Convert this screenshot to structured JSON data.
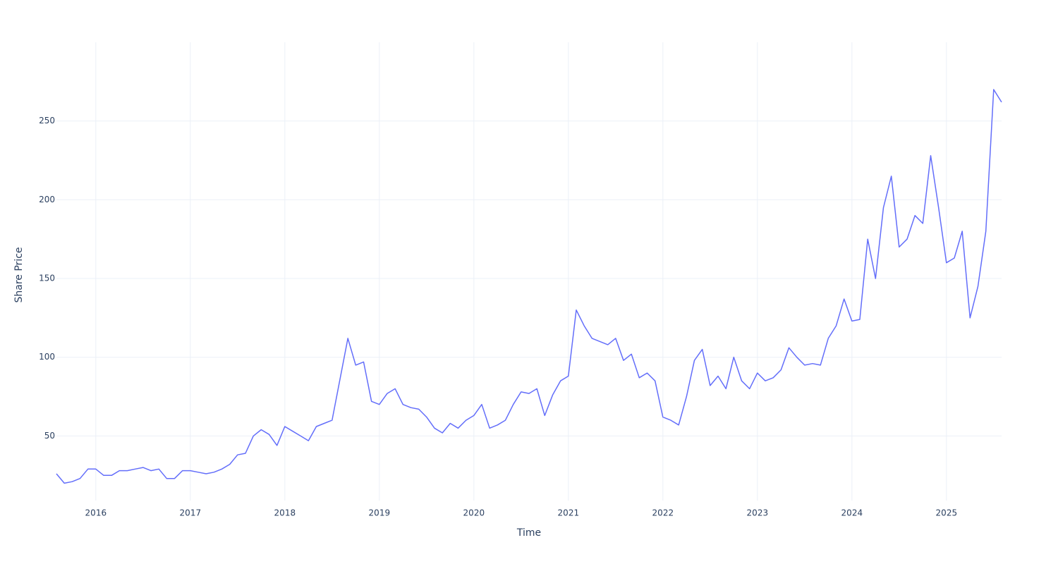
{
  "chart_data": {
    "type": "line",
    "xlabel": "Time",
    "ylabel": "Share Price",
    "x": [
      "2015-08",
      "2015-09",
      "2015-10",
      "2015-11",
      "2015-12",
      "2016-01",
      "2016-02",
      "2016-03",
      "2016-04",
      "2016-05",
      "2016-06",
      "2016-07",
      "2016-08",
      "2016-09",
      "2016-10",
      "2016-11",
      "2016-12",
      "2017-01",
      "2017-02",
      "2017-03",
      "2017-04",
      "2017-05",
      "2017-06",
      "2017-07",
      "2017-08",
      "2017-09",
      "2017-10",
      "2017-11",
      "2017-12",
      "2018-01",
      "2018-02",
      "2018-03",
      "2018-04",
      "2018-05",
      "2018-06",
      "2018-07",
      "2018-08",
      "2018-09",
      "2018-10",
      "2018-11",
      "2018-12",
      "2019-01",
      "2019-02",
      "2019-03",
      "2019-04",
      "2019-05",
      "2019-06",
      "2019-07",
      "2019-08",
      "2019-09",
      "2019-10",
      "2019-11",
      "2019-12",
      "2020-01",
      "2020-02",
      "2020-03",
      "2020-04",
      "2020-05",
      "2020-06",
      "2020-07",
      "2020-08",
      "2020-09",
      "2020-10",
      "2020-11",
      "2020-12",
      "2021-01",
      "2021-02",
      "2021-03",
      "2021-04",
      "2021-05",
      "2021-06",
      "2021-07",
      "2021-08",
      "2021-09",
      "2021-10",
      "2021-11",
      "2021-12",
      "2022-01",
      "2022-02",
      "2022-03",
      "2022-04",
      "2022-05",
      "2022-06",
      "2022-07",
      "2022-08",
      "2022-09",
      "2022-10",
      "2022-11",
      "2022-12",
      "2023-01",
      "2023-02",
      "2023-03",
      "2023-04",
      "2023-05",
      "2023-06",
      "2023-07",
      "2023-08",
      "2023-09",
      "2023-10",
      "2023-11",
      "2023-12",
      "2024-01",
      "2024-02",
      "2024-03",
      "2024-04",
      "2024-05",
      "2024-06",
      "2024-07",
      "2024-08",
      "2024-09",
      "2024-10",
      "2024-11",
      "2024-12",
      "2025-01",
      "2025-02",
      "2025-03",
      "2025-04",
      "2025-05",
      "2025-06",
      "2025-07",
      "2025-08"
    ],
    "series": [
      {
        "name": "Share Price",
        "color": "#636efa",
        "values": [
          26,
          20,
          21,
          23,
          29,
          29,
          25,
          25,
          28,
          28,
          29,
          30,
          28,
          29,
          23,
          23,
          28,
          28,
          27,
          26,
          27,
          29,
          32,
          38,
          39,
          50,
          54,
          51,
          44,
          56,
          53,
          50,
          47,
          56,
          58,
          60,
          86,
          112,
          95,
          97,
          72,
          70,
          77,
          80,
          70,
          68,
          67,
          62,
          55,
          52,
          58,
          55,
          60,
          63,
          70,
          55,
          57,
          60,
          70,
          78,
          77,
          80,
          63,
          76,
          85,
          88,
          130,
          120,
          112,
          110,
          108,
          112,
          98,
          102,
          87,
          90,
          85,
          62,
          60,
          57,
          75,
          98,
          105,
          82,
          88,
          80,
          100,
          85,
          80,
          90,
          85,
          87,
          92,
          106,
          100,
          95,
          96,
          95,
          112,
          120,
          137,
          123,
          124,
          175,
          150,
          195,
          215,
          170,
          175,
          190,
          185,
          228,
          195,
          160,
          163,
          180,
          125,
          145,
          180,
          270,
          262
        ]
      }
    ],
    "xlim": [
      "2015-08",
      "2025-08"
    ],
    "xticks": [
      {
        "value": "2016-01",
        "label": "2016"
      },
      {
        "value": "2017-01",
        "label": "2017"
      },
      {
        "value": "2018-01",
        "label": "2018"
      },
      {
        "value": "2019-01",
        "label": "2019"
      },
      {
        "value": "2020-01",
        "label": "2020"
      },
      {
        "value": "2021-01",
        "label": "2021"
      },
      {
        "value": "2022-01",
        "label": "2022"
      },
      {
        "value": "2023-01",
        "label": "2023"
      },
      {
        "value": "2024-01",
        "label": "2024"
      },
      {
        "value": "2025-01",
        "label": "2025"
      }
    ],
    "ylim": [
      9,
      300
    ],
    "yticks": [
      50,
      100,
      150,
      200,
      250
    ],
    "grid": true
  }
}
